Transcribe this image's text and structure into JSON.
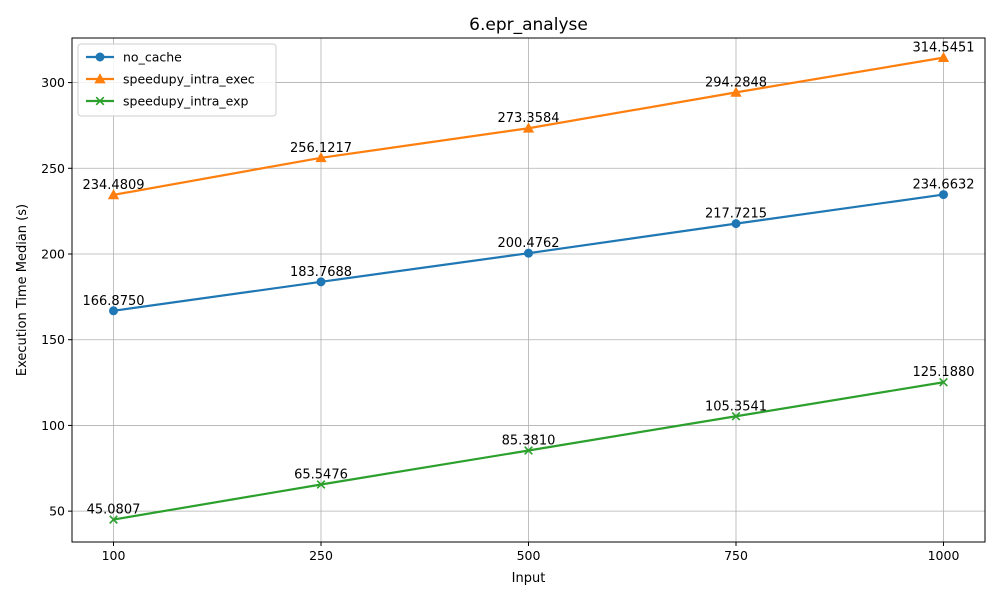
{
  "chart_data": {
    "type": "line",
    "title": "6.epr_analyse",
    "xlabel": "Input",
    "ylabel": "Execution Time Median (s)",
    "categories": [
      "100",
      "250",
      "500",
      "750",
      "1000"
    ],
    "ylim": [
      32,
      326
    ],
    "yticks": [
      50,
      100,
      150,
      200,
      250,
      300
    ],
    "ytick_labels": [
      "50",
      "100",
      "150",
      "200",
      "250",
      "300"
    ],
    "grid": true,
    "legend_position": "top-left",
    "series": [
      {
        "name": "no_cache",
        "color": "#1f77b4",
        "marker": "circle",
        "values": [
          166.875,
          183.7688,
          200.4762,
          217.7215,
          234.6632
        ],
        "labels": [
          "166.8750",
          "183.7688",
          "200.4762",
          "217.7215",
          "234.6632"
        ]
      },
      {
        "name": "speedupy_intra_exec",
        "color": "#ff7f0e",
        "marker": "triangle",
        "values": [
          234.4809,
          256.1217,
          273.3584,
          294.2848,
          314.5451
        ],
        "labels": [
          "234.4809",
          "256.1217",
          "273.3584",
          "294.2848",
          "314.5451"
        ]
      },
      {
        "name": "speedupy_intra_exp",
        "color": "#2ca02c",
        "marker": "x",
        "values": [
          45.0807,
          65.5476,
          85.381,
          105.3541,
          125.188
        ],
        "labels": [
          "45.0807",
          "65.5476",
          "85.3810",
          "105.3541",
          "125.1880"
        ]
      }
    ]
  }
}
